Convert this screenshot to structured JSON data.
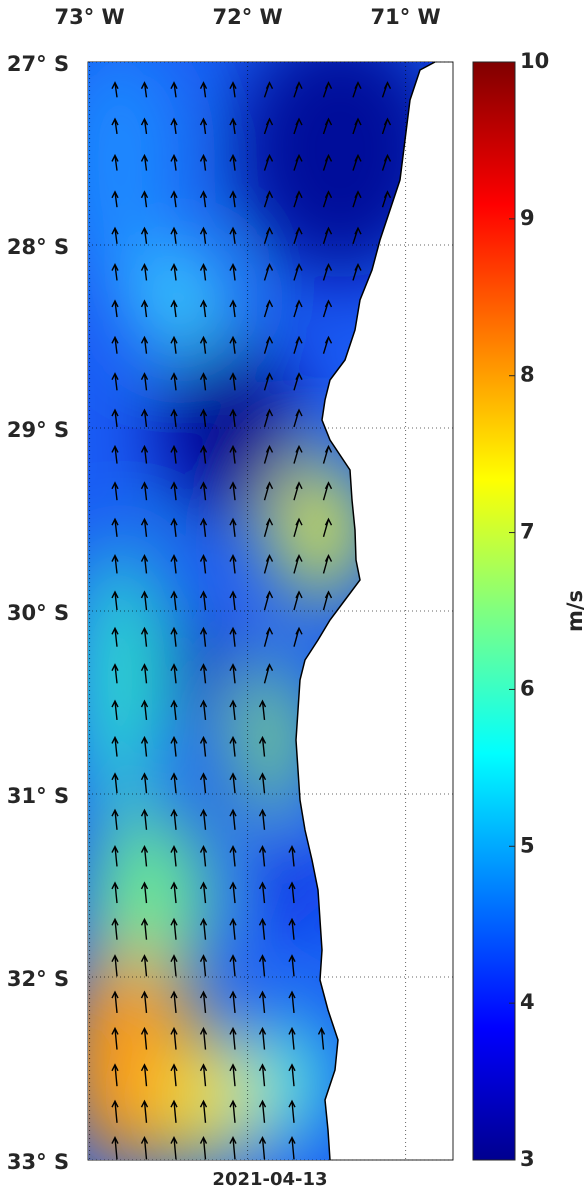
{
  "map": {
    "lonlim": [
      -73.01,
      -70.7
    ],
    "latlim": [
      -33,
      -27
    ],
    "longitude_ticks": [
      {
        "value": -73,
        "label": "73° W"
      },
      {
        "value": -72,
        "label": "72° W"
      },
      {
        "value": -71,
        "label": "71° W"
      }
    ],
    "latitude_ticks": [
      {
        "value": -27,
        "label": "27° S"
      },
      {
        "value": -28,
        "label": "28° S"
      },
      {
        "value": -29,
        "label": "29° S"
      },
      {
        "value": -30,
        "label": "30° S"
      },
      {
        "value": -31,
        "label": "31° S"
      },
      {
        "value": -32,
        "label": "32° S"
      },
      {
        "value": -33,
        "label": "33° S"
      }
    ],
    "colorbar": {
      "label": "m/s",
      "lim": [
        3,
        10
      ],
      "ticks": [
        3,
        4,
        5,
        6,
        7,
        8,
        9,
        10
      ]
    },
    "date": "2021-04-13"
  }
}
